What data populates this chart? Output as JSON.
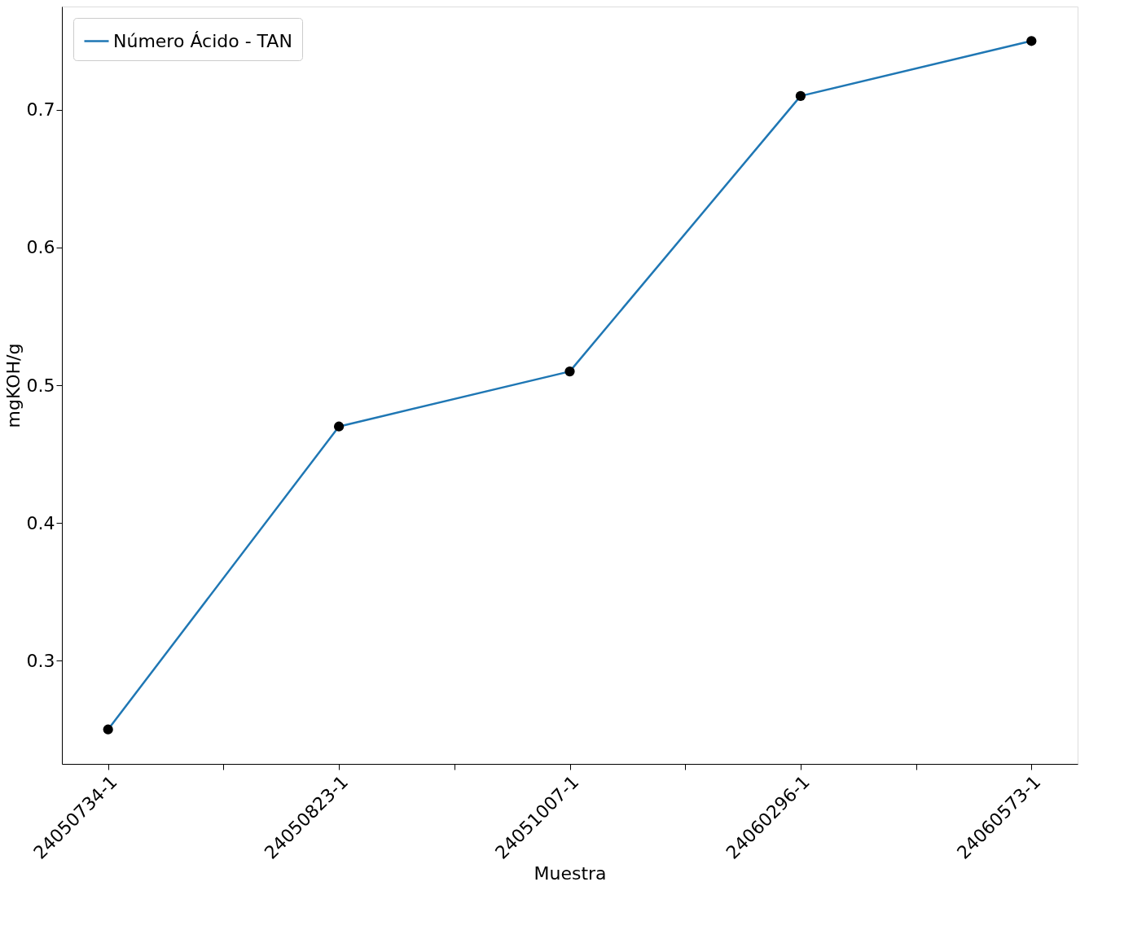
{
  "chart_data": {
    "type": "line",
    "xlabel": "Muestra",
    "ylabel": "mgKOH/g",
    "categories": [
      "24050734-1",
      "24050823-1",
      "24051007-1",
      "24060296-1",
      "24060573-1"
    ],
    "series": [
      {
        "name": "Número Ácido - TAN",
        "color": "#1f77b4",
        "values": [
          0.25,
          0.47,
          0.51,
          0.71,
          0.75
        ]
      }
    ],
    "ylim": [
      0.225,
      0.775
    ],
    "yticks": [
      0.3,
      0.4,
      0.5,
      0.6,
      0.7
    ],
    "grid": false,
    "legend": "top left",
    "marker": "circle",
    "line_style": "solid"
  }
}
